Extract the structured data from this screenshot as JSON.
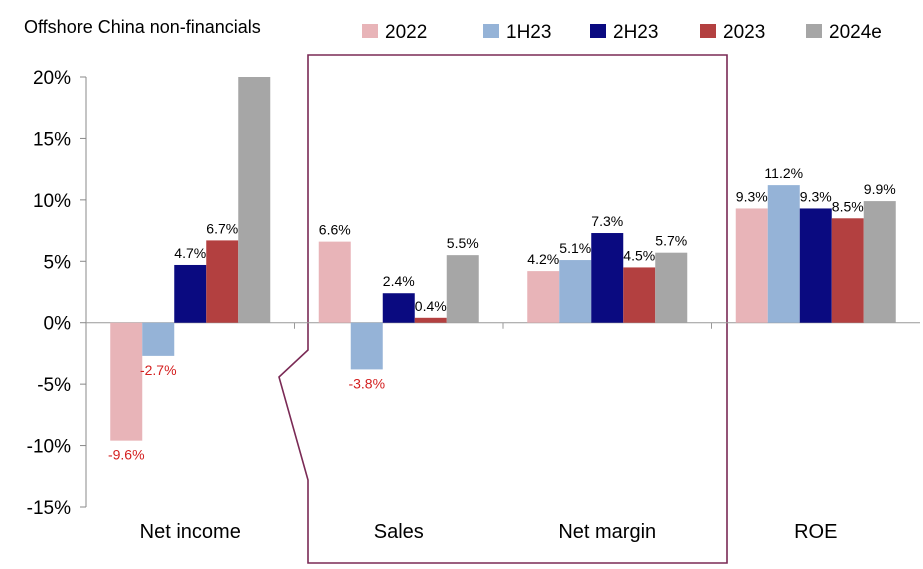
{
  "chart_data": {
    "type": "bar",
    "title": "Offshore China non-financials",
    "xlabel": "",
    "ylabel": "",
    "ylim": [
      -15,
      20
    ],
    "y_ticks": [
      20,
      15,
      10,
      5,
      0,
      -5,
      -10,
      -15
    ],
    "y_tick_labels": [
      "20%",
      "15%",
      "10%",
      "5%",
      "0%",
      "-5%",
      "-10%",
      "-15%"
    ],
    "negative_tick_color": "#d42020",
    "categories": [
      "Net income",
      "Sales",
      "Net margin",
      "ROE"
    ],
    "legend_position": "top-right",
    "series": [
      {
        "name": "2022",
        "color": "#e8b4b8",
        "values": [
          -9.6,
          6.6,
          4.2,
          9.3
        ],
        "labels": [
          "-9.6%",
          "6.6%",
          "4.2%",
          "9.3%"
        ]
      },
      {
        "name": "1H23",
        "color": "#95b3d7",
        "values": [
          -2.7,
          -3.8,
          5.1,
          11.2
        ],
        "labels": [
          "-2.7%",
          "-3.8%",
          "5.1%",
          "11.2%"
        ]
      },
      {
        "name": "2H23",
        "color": "#0a0a80",
        "values": [
          4.7,
          2.4,
          7.3,
          9.3
        ],
        "labels": [
          "4.7%",
          "2.4%",
          "7.3%",
          "9.3%"
        ]
      },
      {
        "name": "2023",
        "color": "#b34040",
        "values": [
          6.7,
          0.4,
          4.5,
          8.5
        ],
        "labels": [
          "6.7%",
          "0.4%",
          "4.5%",
          "8.5%"
        ]
      },
      {
        "name": "2024e",
        "color": "#a6a6a6",
        "values": [
          20,
          5.5,
          5.7,
          9.9
        ],
        "labels": [
          "",
          "5.5%",
          "5.7%",
          "9.9%"
        ]
      }
    ],
    "highlight_box_color": "#7a2a55",
    "label_color_positive": "#000000",
    "label_color_negative": "#d42020"
  }
}
